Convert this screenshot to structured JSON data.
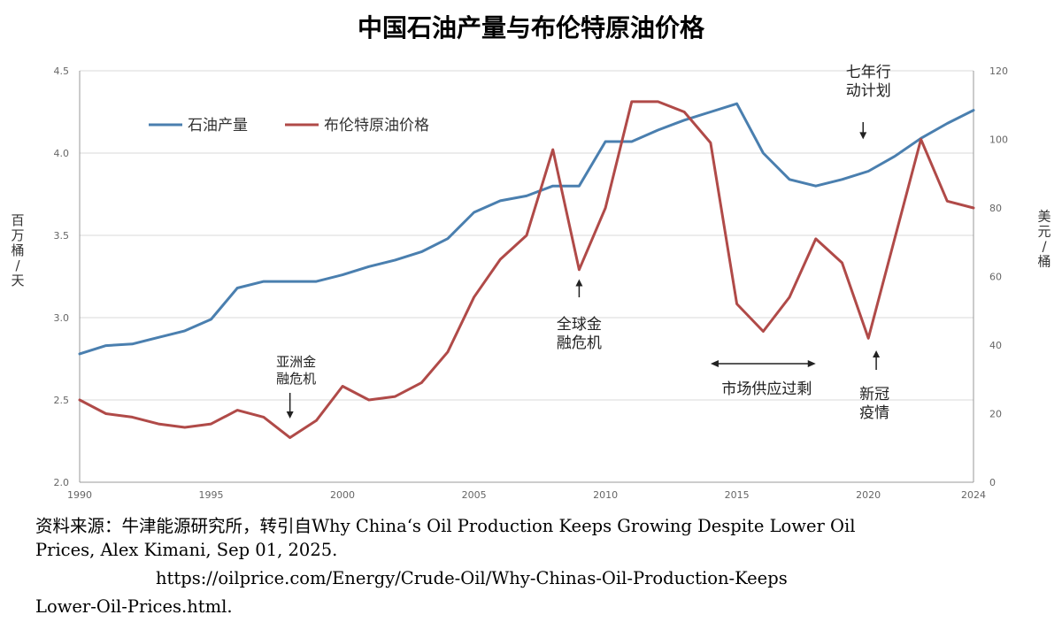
{
  "title": "中国石油产量与布伦特原油价格",
  "source": {
    "line1": "资料来源：牛津能源研究所，转引自Why China‘s Oil Production Keeps Growing Despite Lower Oil",
    "line2": "Prices, Alex Kimani, Sep 01, 2025.",
    "line3": "https://oilprice.com/Energy/Crude-Oil/Why-Chinas-Oil-Production-Keeps",
    "line4": "Lower-Oil-Prices.html."
  },
  "colors": {
    "production": "#4a7faf",
    "brent": "#b04a48",
    "grid": "#d9d9d9",
    "axis": "#999999"
  },
  "chart_data": {
    "type": "line",
    "x": [
      1990,
      1991,
      1992,
      1993,
      1994,
      1995,
      1996,
      1997,
      1998,
      1999,
      2000,
      2001,
      2002,
      2003,
      2004,
      2005,
      2006,
      2007,
      2008,
      2009,
      2010,
      2011,
      2012,
      2013,
      2014,
      2015,
      2016,
      2017,
      2018,
      2019,
      2020,
      2021,
      2022,
      2023,
      2024
    ],
    "x_ticks": [
      "1990",
      "1995",
      "2000",
      "2005",
      "2010",
      "2015",
      "2020",
      "2024"
    ],
    "xlim": [
      1990,
      2024
    ],
    "ylabel_left": "百万桶/天",
    "ylim_left": [
      2.0,
      4.5
    ],
    "yticks_left": [
      "2.0",
      "2.5",
      "3.0",
      "3.5",
      "4.0",
      "4.5"
    ],
    "ylabel_right": "美元/桶",
    "ylim_right": [
      0,
      120
    ],
    "yticks_right": [
      "0",
      "20",
      "40",
      "60",
      "80",
      "100",
      "120"
    ],
    "legend_position": "top-left",
    "series": [
      {
        "name": "石油产量",
        "axis": "left",
        "values": [
          2.78,
          2.83,
          2.84,
          2.88,
          2.92,
          2.99,
          3.18,
          3.22,
          3.22,
          3.22,
          3.26,
          3.31,
          3.35,
          3.4,
          3.48,
          3.64,
          3.71,
          3.74,
          3.8,
          3.8,
          4.07,
          4.07,
          4.14,
          4.2,
          4.25,
          4.3,
          4.0,
          3.84,
          3.8,
          3.84,
          3.89,
          3.98,
          4.09,
          4.18,
          4.26
        ]
      },
      {
        "name": "布伦特原油价格",
        "axis": "right",
        "values": [
          24,
          20,
          19,
          17,
          16,
          17,
          21,
          19,
          13,
          18,
          28,
          24,
          25,
          29,
          38,
          54,
          65,
          72,
          97,
          62,
          80,
          111,
          111,
          108,
          99,
          52,
          44,
          54,
          71,
          64,
          42,
          71,
          100,
          82,
          80
        ]
      }
    ],
    "annotations": [
      {
        "text": [
          "亚洲金",
          "融危机"
        ],
        "x": 1998,
        "target_right": 16
      },
      {
        "text": [
          "全球金",
          "融危机"
        ],
        "x": 2009,
        "target_right": 60
      },
      {
        "text": [
          "七年行",
          "动计划"
        ],
        "x": 2019.8,
        "target_right": 99
      },
      {
        "text": [
          "市场供应过剩"
        ],
        "range": [
          2014,
          2018
        ],
        "level_right": 34
      },
      {
        "text": [
          "新冠",
          "疫情"
        ],
        "x": 2020.3,
        "target_right": 40
      }
    ]
  }
}
